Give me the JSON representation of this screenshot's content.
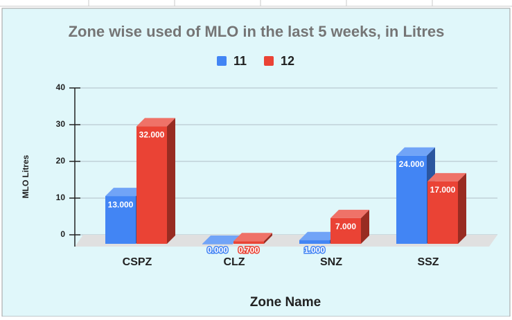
{
  "chart_data": {
    "type": "bar",
    "title": "Zone wise used of MLO in the last 5 weeks, in Litres",
    "xlabel": "Zone Name",
    "ylabel": "MLO Litres",
    "categories": [
      "CSPZ",
      "CLZ",
      "SNZ",
      "SSZ"
    ],
    "series": [
      {
        "name": "11",
        "color": "#4285f4",
        "values": [
          13,
          0,
          1,
          24
        ],
        "value_labels": [
          "13.000",
          "0.000",
          "1.000",
          "24.000"
        ]
      },
      {
        "name": "12",
        "color": "#ea4335",
        "values": [
          32,
          0.7,
          7,
          17
        ],
        "value_labels": [
          "32.000",
          "0.700",
          "7.000",
          "17.000"
        ]
      }
    ],
    "ylim": [
      0,
      40
    ],
    "yticks": [
      0,
      10,
      20,
      30,
      40
    ],
    "grid": true,
    "legend": "top"
  }
}
